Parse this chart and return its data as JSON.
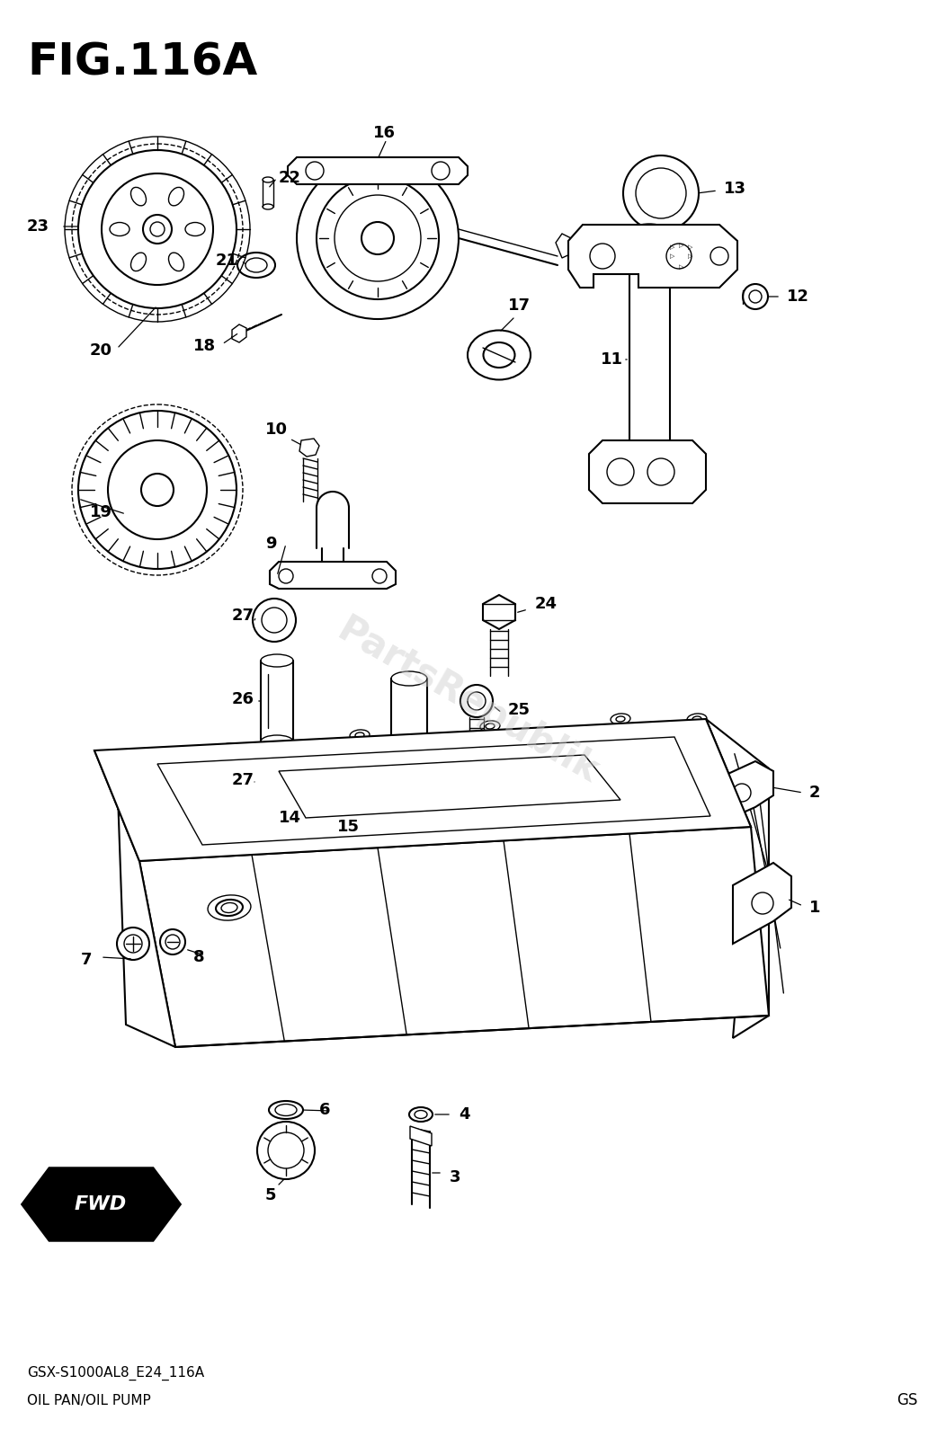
{
  "title": "FIG.116A",
  "subtitle1": "GSX-S1000AL8_E24_116A",
  "subtitle2": "OIL PAN/OIL PUMP",
  "watermark": "PartsRepublik",
  "corner_label": "GS",
  "fwd_label": "FWD",
  "background_color": "#ffffff",
  "line_color": "#000000",
  "watermark_color": "#bbbbbb",
  "title_fontsize": 32,
  "label_fontsize": 13
}
